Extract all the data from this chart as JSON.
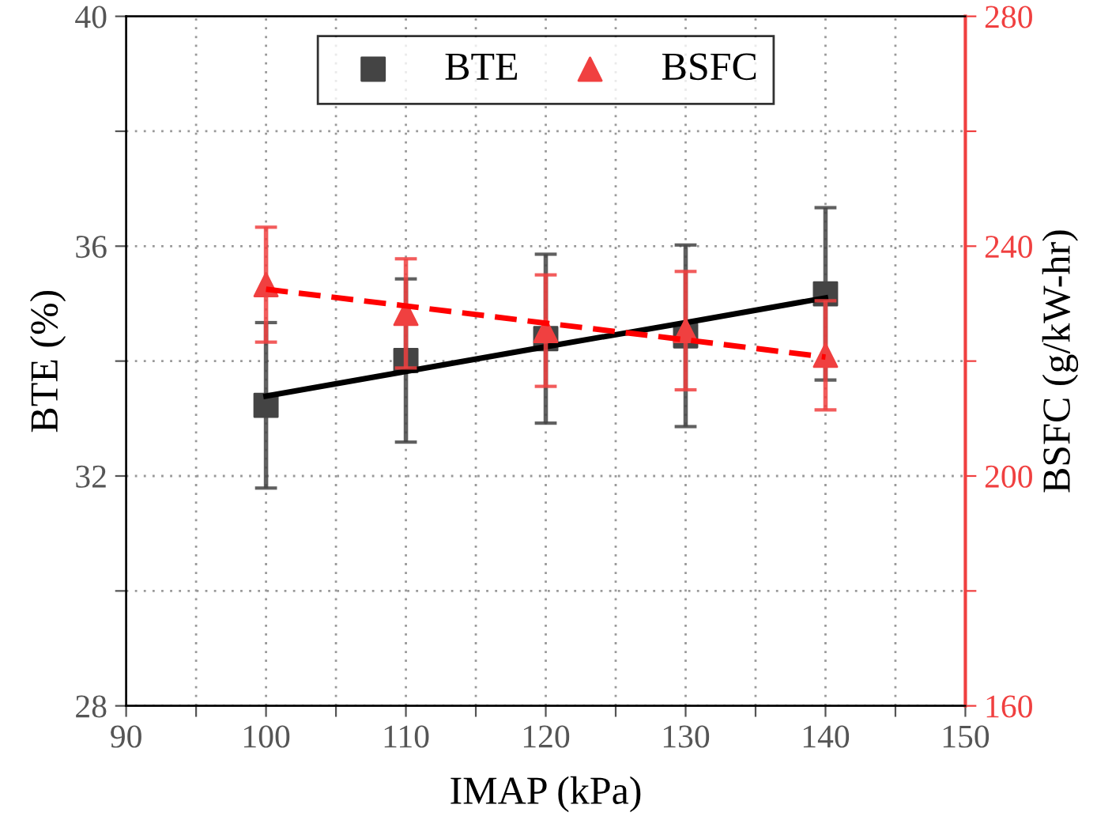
{
  "chart_data": {
    "type": "scatter",
    "xlabel": "IMAP (kPa)",
    "ylabel": "BTE (%)",
    "y2label": "BSFC (g/kW-hr)",
    "x": [
      100,
      110,
      120,
      130,
      140
    ],
    "series": [
      {
        "name": "BTE",
        "color": "#444444",
        "marker": "square",
        "values": [
          33.23,
          34.01,
          34.39,
          34.44,
          35.17
        ],
        "errors": [
          1.44,
          1.42,
          1.47,
          1.58,
          1.5
        ]
      },
      {
        "name": "BSFC",
        "axis": "y2",
        "color": "#f04040",
        "marker": "triangle",
        "values": [
          233.3,
          228.3,
          225.3,
          225.3,
          221
        ],
        "errors": [
          10,
          9.5,
          9.7,
          10.3,
          9.5
        ]
      },
      {
        "type": "line",
        "color": "#000000",
        "line_style": "solid",
        "marker": "none",
        "values": [
          33.39,
          33.82,
          34.25,
          34.67,
          35.1
        ]
      },
      {
        "type": "line",
        "axis": "y2",
        "color": "#ff0000",
        "line_style": "dashed",
        "marker": "none",
        "values": [
          232.5,
          229.6,
          226.6,
          223.7,
          220.7
        ]
      }
    ],
    "xlim": [
      90,
      150
    ],
    "xticks": [
      90,
      {
        "value": 95,
        "label": null
      },
      100,
      {
        "value": 105,
        "label": null
      },
      110,
      {
        "value": 115,
        "label": null
      },
      120,
      {
        "value": 125,
        "label": null
      },
      130,
      {
        "value": 135,
        "label": null
      },
      140,
      {
        "value": 145,
        "label": null
      },
      150
    ],
    "ylim": [
      28,
      40
    ],
    "yticks": [
      28,
      {
        "value": 30,
        "label": null
      },
      32,
      {
        "value": 34,
        "label": null
      },
      36,
      {
        "value": 38,
        "label": null
      },
      40
    ],
    "y2lim": [
      160,
      280
    ],
    "y2ticks": [
      160,
      {
        "value": 180,
        "label": null
      },
      200,
      {
        "value": 220,
        "label": null
      },
      240,
      {
        "value": 260,
        "label": null
      },
      280
    ],
    "grid": true,
    "legend": "top"
  }
}
